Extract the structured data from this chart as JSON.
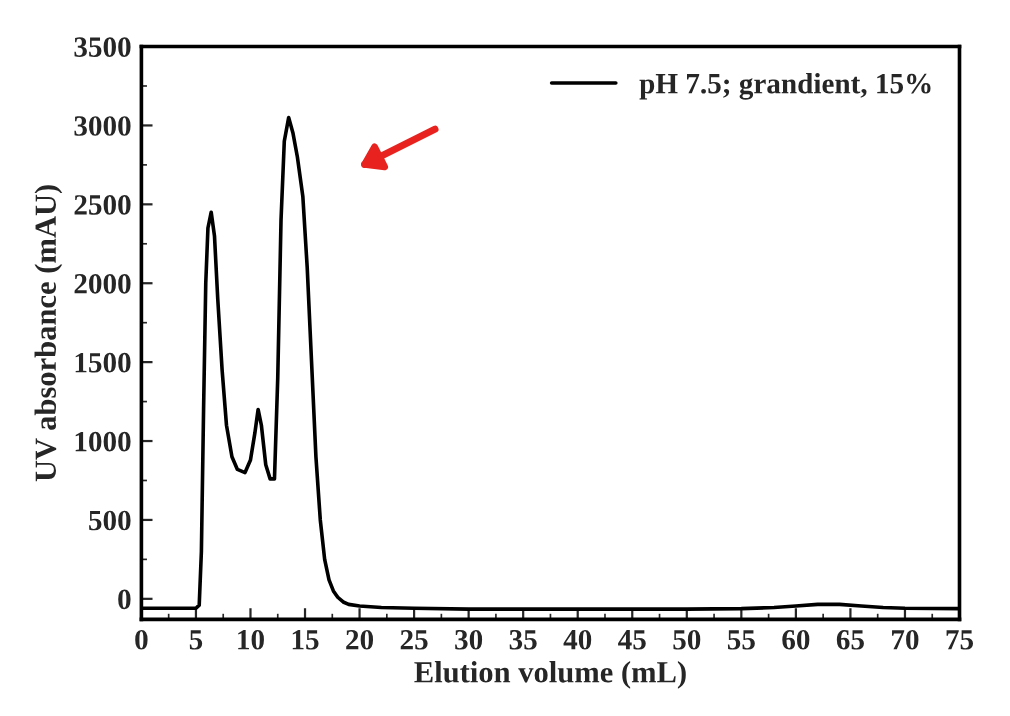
{
  "chart_data": {
    "type": "line",
    "xlabel": "Elution volume (mL)",
    "ylabel": "UV absorbance (mAU)",
    "xlim": [
      0,
      75
    ],
    "xticks": [
      0,
      5,
      10,
      15,
      20,
      25,
      30,
      35,
      40,
      45,
      50,
      55,
      60,
      65,
      70,
      75
    ],
    "ylim": [
      -130,
      3500
    ],
    "yticks": [
      0,
      500,
      1000,
      1500,
      2000,
      2500,
      3000,
      3500
    ],
    "legend": "top right",
    "grid": false,
    "marker": "none",
    "line_style": "solid",
    "series": [
      {
        "name": "pH 7.5; grandient, 15%",
        "color": "#000000",
        "x": [
          0,
          5,
          5.3,
          5.5,
          5.7,
          5.9,
          6.1,
          6.4,
          6.7,
          7.0,
          7.4,
          7.8,
          8.3,
          8.8,
          9.5,
          10.0,
          10.4,
          10.7,
          11.0,
          11.4,
          11.8,
          12.2,
          12.5,
          12.8,
          13.1,
          13.5,
          13.9,
          14.3,
          14.8,
          15.2,
          15.6,
          16.0,
          16.4,
          16.8,
          17.2,
          17.6,
          18.0,
          18.5,
          19.0,
          20,
          22,
          25,
          30,
          40,
          50,
          55,
          58,
          60,
          62,
          64,
          66,
          68,
          70,
          75
        ],
        "values": [
          -60,
          -60,
          -40,
          300,
          1200,
          2000,
          2350,
          2450,
          2300,
          1900,
          1450,
          1100,
          900,
          820,
          800,
          880,
          1050,
          1200,
          1100,
          850,
          760,
          760,
          1400,
          2400,
          2900,
          3050,
          2950,
          2800,
          2550,
          2100,
          1500,
          900,
          500,
          250,
          120,
          50,
          10,
          -20,
          -35,
          -45,
          -55,
          -60,
          -65,
          -65,
          -65,
          -62,
          -55,
          -45,
          -35,
          -35,
          -45,
          -55,
          -60,
          -62
        ]
      }
    ]
  }
}
